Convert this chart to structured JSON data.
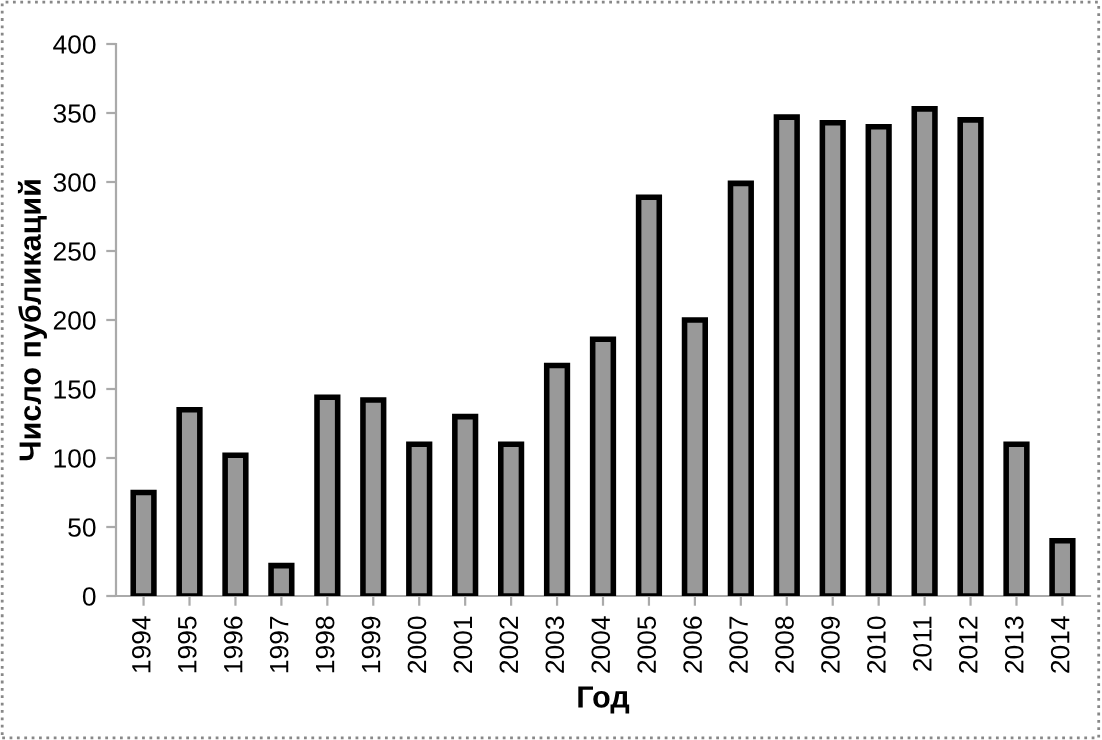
{
  "chart_data": {
    "type": "bar",
    "xlabel": "Год",
    "ylabel": "Число публикаций",
    "categories": [
      "1994",
      "1995",
      "1996",
      "1997",
      "1998",
      "1999",
      "2000",
      "2001",
      "2002",
      "2003",
      "2004",
      "2005",
      "2006",
      "2007",
      "2008",
      "2009",
      "2010",
      "2011",
      "2012",
      "2013",
      "2014"
    ],
    "values": [
      75,
      135,
      102,
      22,
      144,
      142,
      110,
      130,
      110,
      167,
      186,
      289,
      200,
      299,
      347,
      343,
      340,
      353,
      345,
      110,
      40
    ],
    "color": "#999999",
    "ylim": [
      0,
      400
    ],
    "yticks": [
      0,
      50,
      100,
      150,
      200,
      250,
      300,
      350,
      400
    ],
    "grid": false,
    "legend": false
  }
}
